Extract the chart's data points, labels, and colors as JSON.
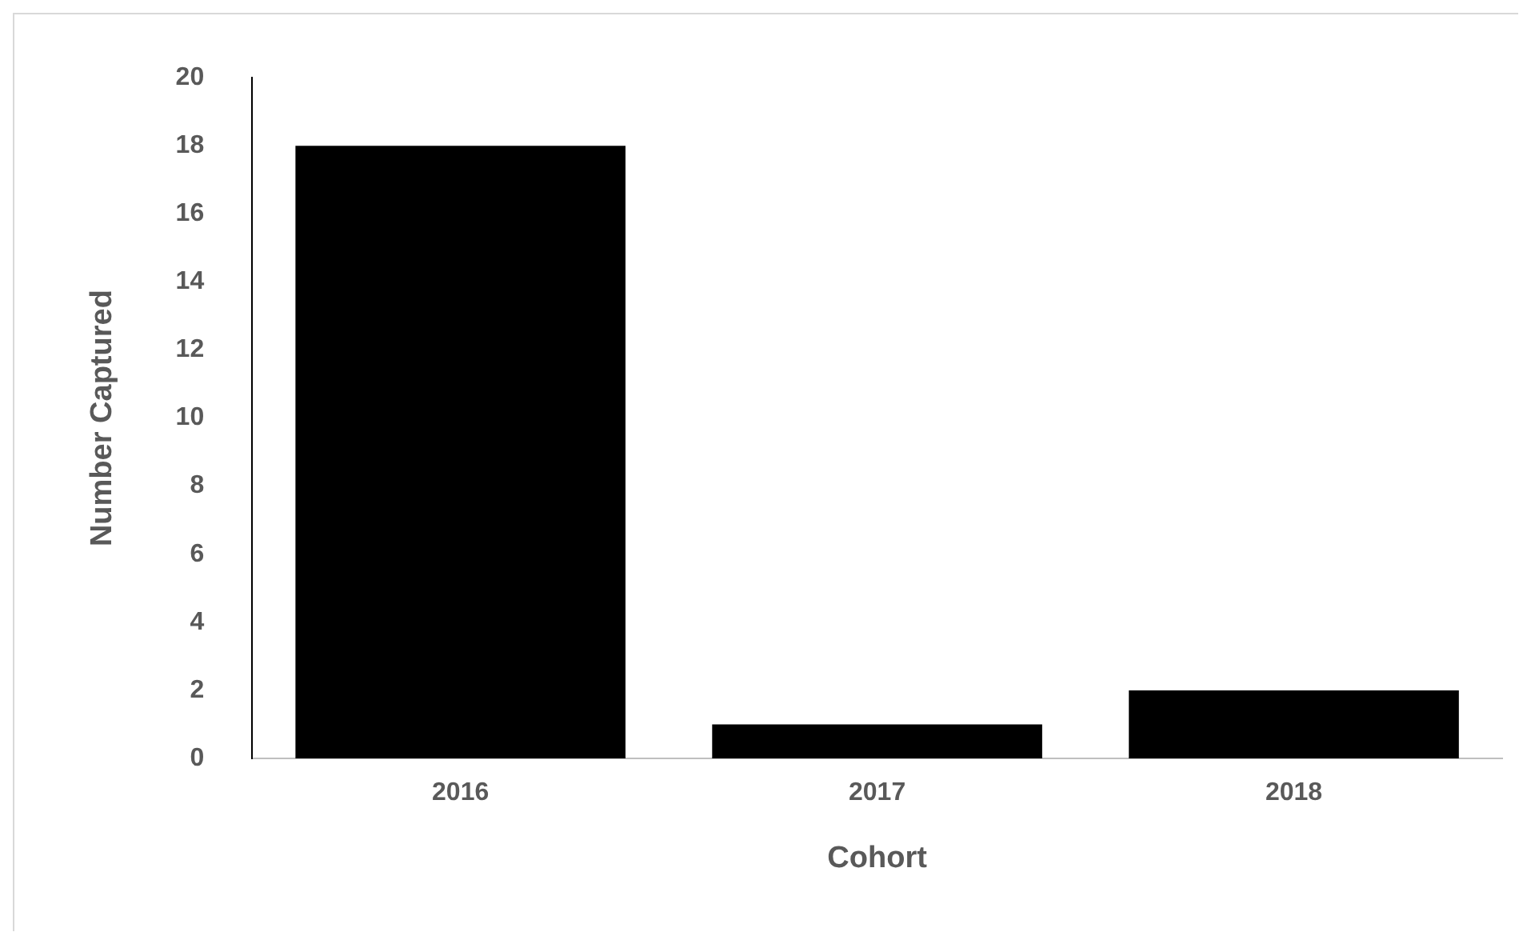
{
  "chart_data": {
    "type": "bar",
    "xlabel": "Cohort",
    "ylabel": "Number Captured",
    "categories": [
      "2016",
      "2017",
      "2018"
    ],
    "values": [
      18,
      1,
      2
    ],
    "color": "#000000",
    "ylim": [
      0,
      20
    ],
    "yticks": [
      0,
      2,
      4,
      6,
      8,
      10,
      12,
      14,
      16,
      18,
      20
    ],
    "grid": false,
    "legend": false
  }
}
